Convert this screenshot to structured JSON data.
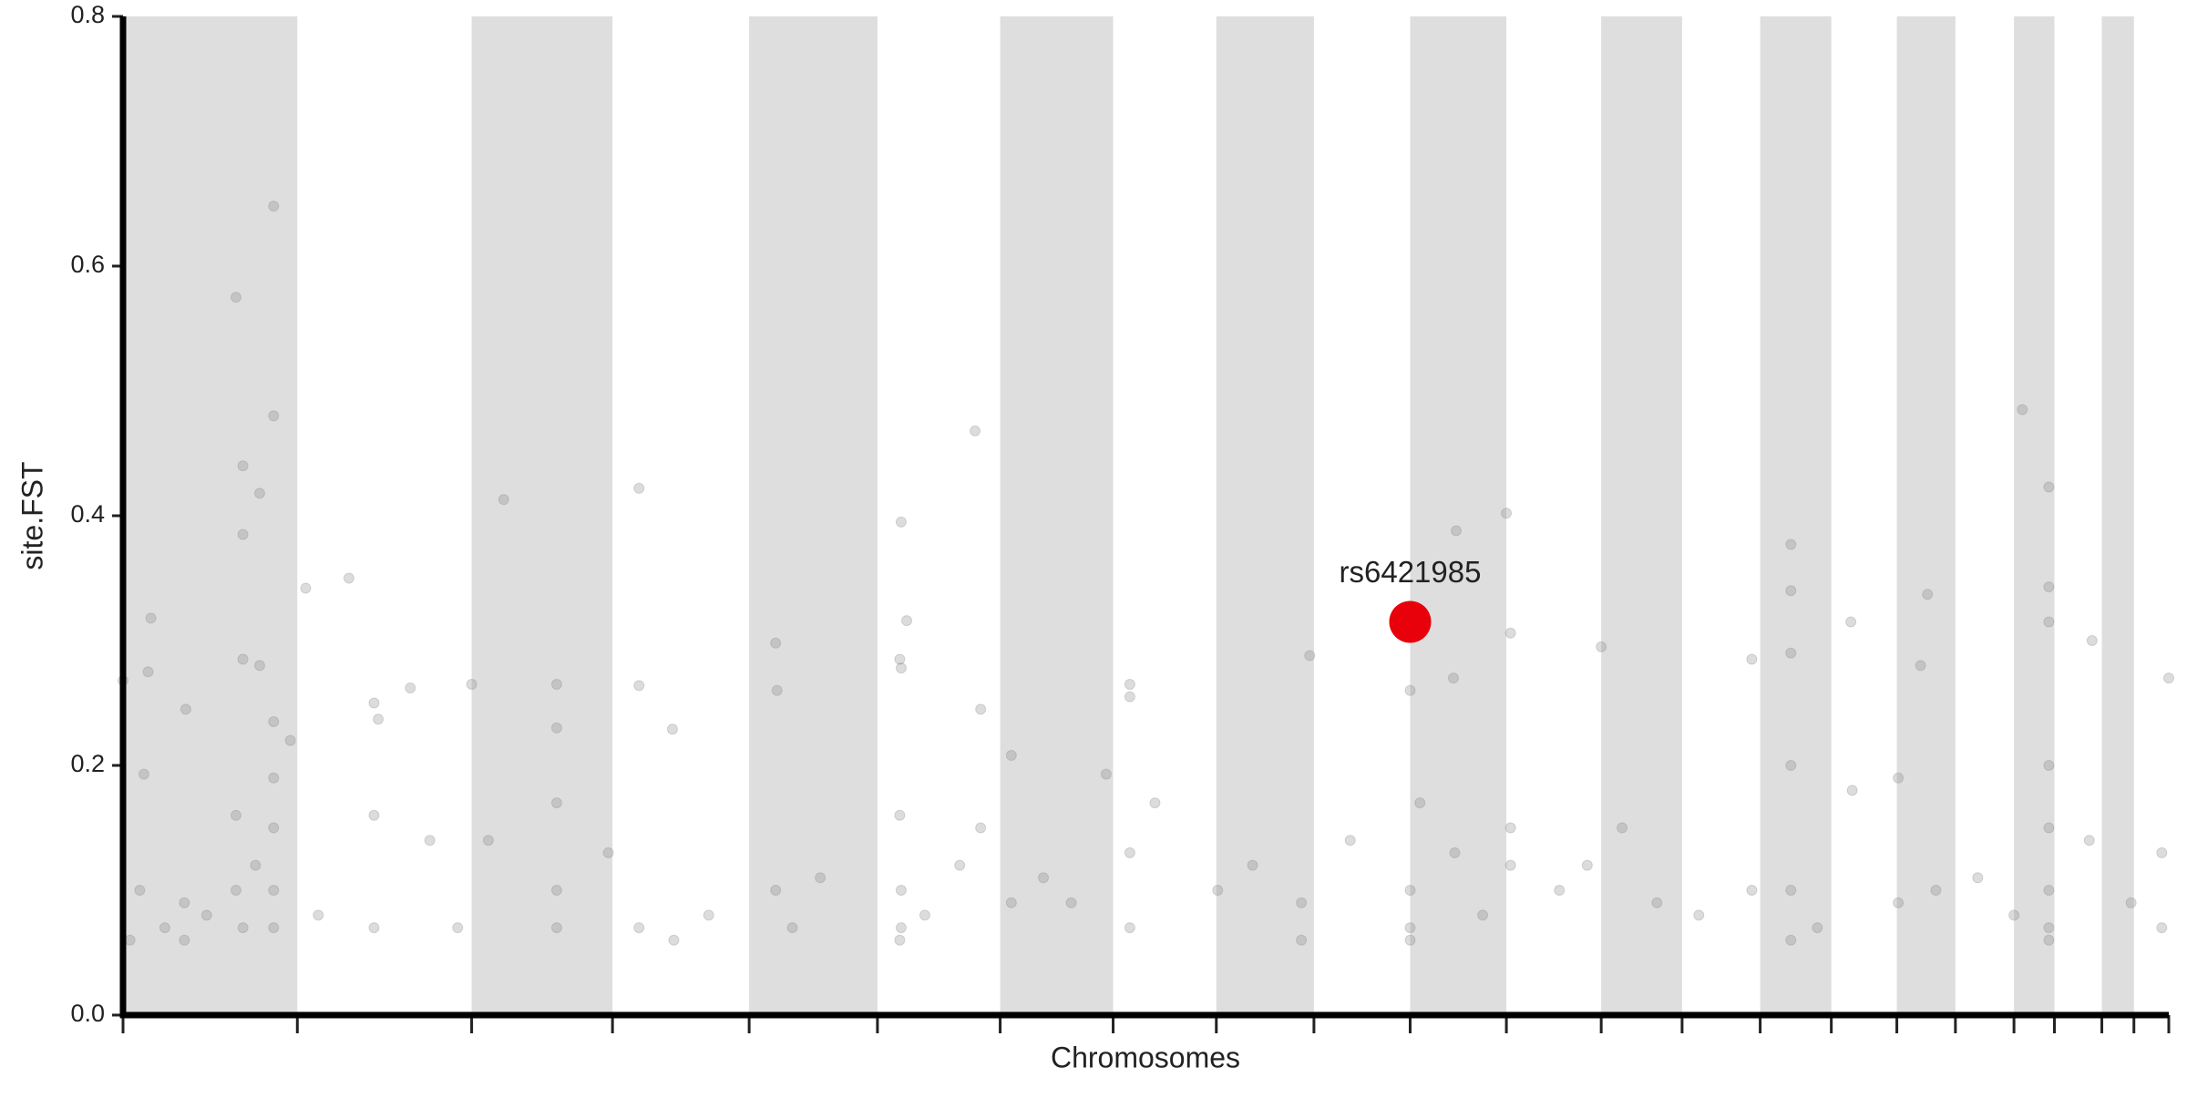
{
  "chart_data": {
    "type": "scatter",
    "xlabel": "Chromosomes",
    "ylabel": "site.FST",
    "xlim": [
      0,
      1467
    ],
    "ylim": [
      0,
      0.8
    ],
    "xticks": [
      0,
      125,
      250,
      351,
      449,
      541,
      629,
      710,
      784,
      854,
      923,
      992,
      1060,
      1118,
      1174,
      1225,
      1272,
      1314,
      1356,
      1385,
      1419,
      1442,
      1467
    ],
    "yticks": [
      {
        "value": 0,
        "label": "0.0"
      },
      0.2,
      0.4,
      0.6,
      0.8
    ],
    "shade_color": "#dedede",
    "color": "#808080",
    "opacity": 0.28,
    "x": [
      81,
      108,
      108,
      86,
      98,
      86,
      86,
      98,
      20,
      18,
      0,
      45,
      15,
      108,
      120,
      131,
      162,
      180,
      183,
      206,
      250,
      273,
      311,
      311,
      311,
      370,
      370,
      394,
      468,
      469,
      558,
      562,
      557,
      558,
      611,
      615,
      637,
      722,
      722,
      705,
      851,
      923,
      956,
      992,
      995,
      1060,
      954,
      1168,
      1196,
      1196,
      1196,
      1239,
      1294,
      1289,
      1362,
      1381,
      1381,
      1381,
      1412,
      1467,
      5,
      12,
      30,
      44,
      44,
      60,
      81,
      81,
      86,
      95,
      108,
      108,
      108,
      108,
      140,
      180,
      180,
      220,
      240,
      262,
      311,
      311,
      348,
      370,
      395,
      420,
      468,
      480,
      500,
      557,
      558,
      558,
      557,
      575,
      600,
      615,
      637,
      660,
      680,
      722,
      722,
      740,
      785,
      810,
      845,
      845,
      880,
      923,
      923,
      923,
      930,
      955,
      975,
      995,
      995,
      1030,
      1050,
      1075,
      1100,
      1130,
      1168,
      1196,
      1196,
      1196,
      1215,
      1240,
      1273,
      1273,
      1300,
      1330,
      1356,
      1381,
      1381,
      1381,
      1381,
      1381,
      1410,
      1440,
      1462,
      1462
    ],
    "y": [
      0.575,
      0.648,
      0.48,
      0.44,
      0.418,
      0.385,
      0.285,
      0.28,
      0.318,
      0.275,
      0.268,
      0.245,
      0.193,
      0.235,
      0.22,
      0.342,
      0.35,
      0.25,
      0.237,
      0.262,
      0.265,
      0.413,
      0.265,
      0.23,
      0.17,
      0.422,
      0.264,
      0.229,
      0.298,
      0.26,
      0.395,
      0.316,
      0.285,
      0.278,
      0.468,
      0.245,
      0.208,
      0.265,
      0.255,
      0.193,
      0.288,
      0.26,
      0.388,
      0.402,
      0.306,
      0.295,
      0.27,
      0.285,
      0.377,
      0.34,
      0.29,
      0.315,
      0.337,
      0.28,
      0.485,
      0.423,
      0.343,
      0.315,
      0.3,
      0.27,
      0.06,
      0.1,
      0.07,
      0.09,
      0.06,
      0.08,
      0.16,
      0.1,
      0.07,
      0.12,
      0.07,
      0.1,
      0.15,
      0.19,
      0.08,
      0.07,
      0.16,
      0.14,
      0.07,
      0.14,
      0.1,
      0.07,
      0.13,
      0.07,
      0.06,
      0.08,
      0.1,
      0.07,
      0.11,
      0.16,
      0.1,
      0.07,
      0.06,
      0.08,
      0.12,
      0.15,
      0.09,
      0.11,
      0.09,
      0.13,
      0.07,
      0.17,
      0.1,
      0.12,
      0.09,
      0.06,
      0.14,
      0.1,
      0.07,
      0.06,
      0.17,
      0.13,
      0.08,
      0.15,
      0.12,
      0.1,
      0.12,
      0.15,
      0.09,
      0.08,
      0.1,
      0.2,
      0.1,
      0.06,
      0.07,
      0.18,
      0.19,
      0.09,
      0.1,
      0.11,
      0.08,
      0.2,
      0.15,
      0.1,
      0.07,
      0.06,
      0.14,
      0.09,
      0.13,
      0.07
    ],
    "highlight": {
      "x": 923,
      "y": 0.315,
      "label": "rs6421985",
      "color": "#e8000b"
    }
  }
}
